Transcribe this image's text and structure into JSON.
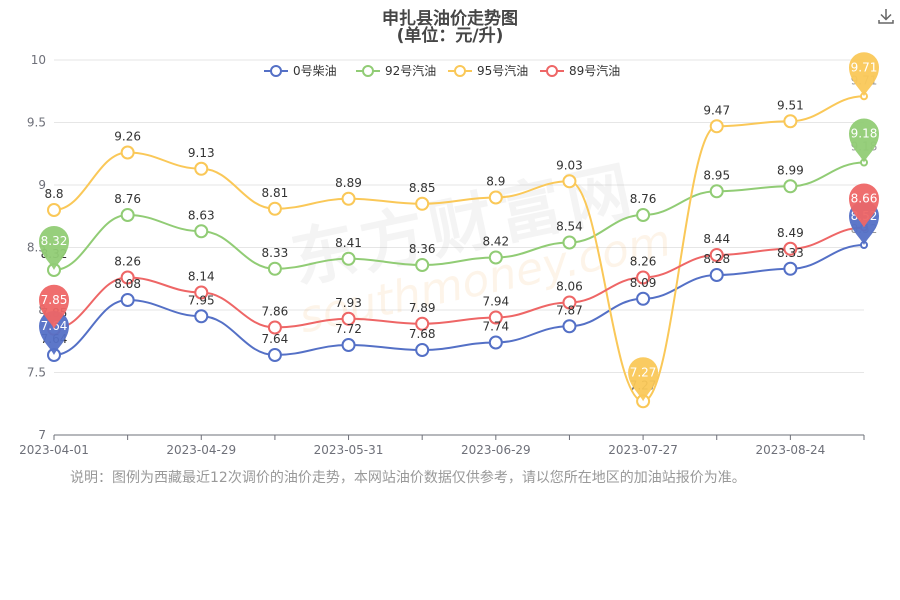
{
  "title": "申扎县油价走势图",
  "subtitle": "(单位：元/升)",
  "note": "说明：图例为西藏最近12次调价的油价走势，本网站油价数据仅供参考，请以您所在地区的加油站报价为准。",
  "watermark": {
    "cn": "东方财富网",
    "en": "southmoney.com"
  },
  "download_icon": "download-icon",
  "chart_data": {
    "type": "line",
    "x": [
      "2023-04-01",
      "2023-04-15",
      "2023-04-29",
      "2023-05-16",
      "2023-05-31",
      "2023-06-15",
      "2023-06-29",
      "2023-07-13",
      "2023-07-27",
      "2023-08-10",
      "2023-08-24",
      "2023-09-07"
    ],
    "x_tick_labels": [
      "2023-04-01",
      "2023-04-29",
      "2023-05-31",
      "2023-06-29",
      "2023-07-27",
      "2023-08-24"
    ],
    "ylim": [
      7,
      10
    ],
    "y_ticks": [
      "7",
      "7.5",
      "8",
      "8.5",
      "9",
      "9.5",
      "10"
    ],
    "grid": true,
    "legend_position": "top",
    "series": [
      {
        "name": "0号柴油",
        "color": "#5470c6",
        "values": [
          7.64,
          8.08,
          7.95,
          7.64,
          7.72,
          7.68,
          7.74,
          7.87,
          8.09,
          8.28,
          8.33,
          8.52
        ],
        "min_label": "7.64",
        "max_label": "8.52"
      },
      {
        "name": "92号汽油",
        "color": "#91cc75",
        "values": [
          8.32,
          8.76,
          8.63,
          8.33,
          8.41,
          8.36,
          8.42,
          8.54,
          8.76,
          8.95,
          8.99,
          9.18
        ],
        "min_label": "8.32",
        "max_label": "9.18"
      },
      {
        "name": "95号汽油",
        "color": "#fac858",
        "values": [
          8.8,
          9.26,
          9.13,
          8.81,
          8.89,
          8.85,
          8.9,
          9.03,
          7.27,
          9.47,
          9.51,
          9.71
        ],
        "min_label": "7.27",
        "max_label": "9.71"
      },
      {
        "name": "89号汽油",
        "color": "#ee6666",
        "values": [
          7.85,
          8.26,
          8.14,
          7.86,
          7.93,
          7.89,
          7.94,
          8.06,
          8.26,
          8.44,
          8.49,
          8.66
        ],
        "min_label": "7.85",
        "max_label": "8.66"
      }
    ]
  }
}
